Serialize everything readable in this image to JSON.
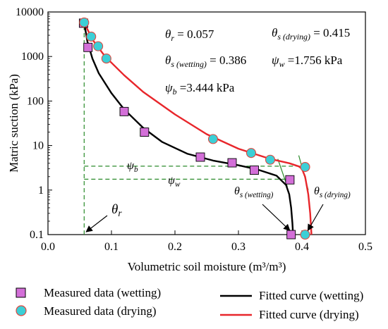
{
  "chart_data": {
    "type": "scatter",
    "xlabel": "Volumetric soil moisture (m³/m³)",
    "ylabel": "Matric suction (kPa)",
    "xlim": [
      0.0,
      0.5
    ],
    "ylim": [
      0.1,
      10000
    ],
    "yscale": "log",
    "x_ticks": [
      "0.0",
      "0.1",
      "0.2",
      "0.3",
      "0.4",
      "0.5"
    ],
    "y_ticks": [
      "0.1",
      "1",
      "10",
      "100",
      "1000",
      "10000"
    ],
    "grid": false,
    "series": [
      {
        "name": "Measured data (wetting)",
        "marker": "square",
        "color": "#d36fd8",
        "x": [
          0.056,
          0.063,
          0.12,
          0.152,
          0.24,
          0.29,
          0.325,
          0.381,
          0.383
        ],
        "y": [
          5600,
          1600,
          58,
          20,
          5.5,
          4.1,
          2.8,
          1.7,
          0.1
        ]
      },
      {
        "name": "Measured data (drying)",
        "marker": "circle",
        "color": "#3ccfd6",
        "x": [
          0.057,
          0.068,
          0.079,
          0.092,
          0.26,
          0.32,
          0.35,
          0.405,
          0.405
        ],
        "y": [
          5800,
          2800,
          1700,
          900,
          14,
          6.8,
          4.8,
          3.3,
          0.1
        ]
      },
      {
        "name": "Fitted curve (wetting)",
        "type": "line",
        "color": "#000000",
        "x": [
          0.057,
          0.062,
          0.07,
          0.08,
          0.1,
          0.12,
          0.15,
          0.18,
          0.22,
          0.26,
          0.3,
          0.33,
          0.36,
          0.375,
          0.38,
          0.383,
          0.385,
          0.386
        ],
        "y": [
          5800,
          2200,
          900,
          420,
          150,
          65,
          25,
          12,
          6.5,
          4.6,
          3.6,
          2.9,
          2.1,
          1.3,
          0.8,
          0.4,
          0.18,
          0.1
        ]
      },
      {
        "name": "Fitted curve (drying)",
        "type": "line",
        "color": "#e8262b",
        "x": [
          0.057,
          0.07,
          0.09,
          0.12,
          0.15,
          0.2,
          0.25,
          0.3,
          0.35,
          0.38,
          0.395,
          0.4,
          0.405,
          0.41,
          0.413,
          0.415
        ],
        "y": [
          5800,
          2400,
          1000,
          380,
          160,
          50,
          18,
          8.5,
          5.0,
          4.0,
          3.4,
          3.0,
          2.0,
          0.8,
          0.3,
          0.1
        ]
      }
    ],
    "annotations": {
      "theta_r": "= 0.057",
      "theta_s_wetting": "= 0.386",
      "theta_s_drying": "= 0.415",
      "psi_b": "=3.444 kPa",
      "psi_w": "=1.756 kPa",
      "psi_b_value": 3.444,
      "psi_w_value": 1.756,
      "theta_r_value": 0.057
    }
  },
  "legend": {
    "wetting_data": "Measured data (wetting)",
    "drying_data": "Measured data (drying)",
    "wetting_curve": "Fitted curve (wetting)",
    "drying_curve": "Fitted curve (drying)"
  }
}
